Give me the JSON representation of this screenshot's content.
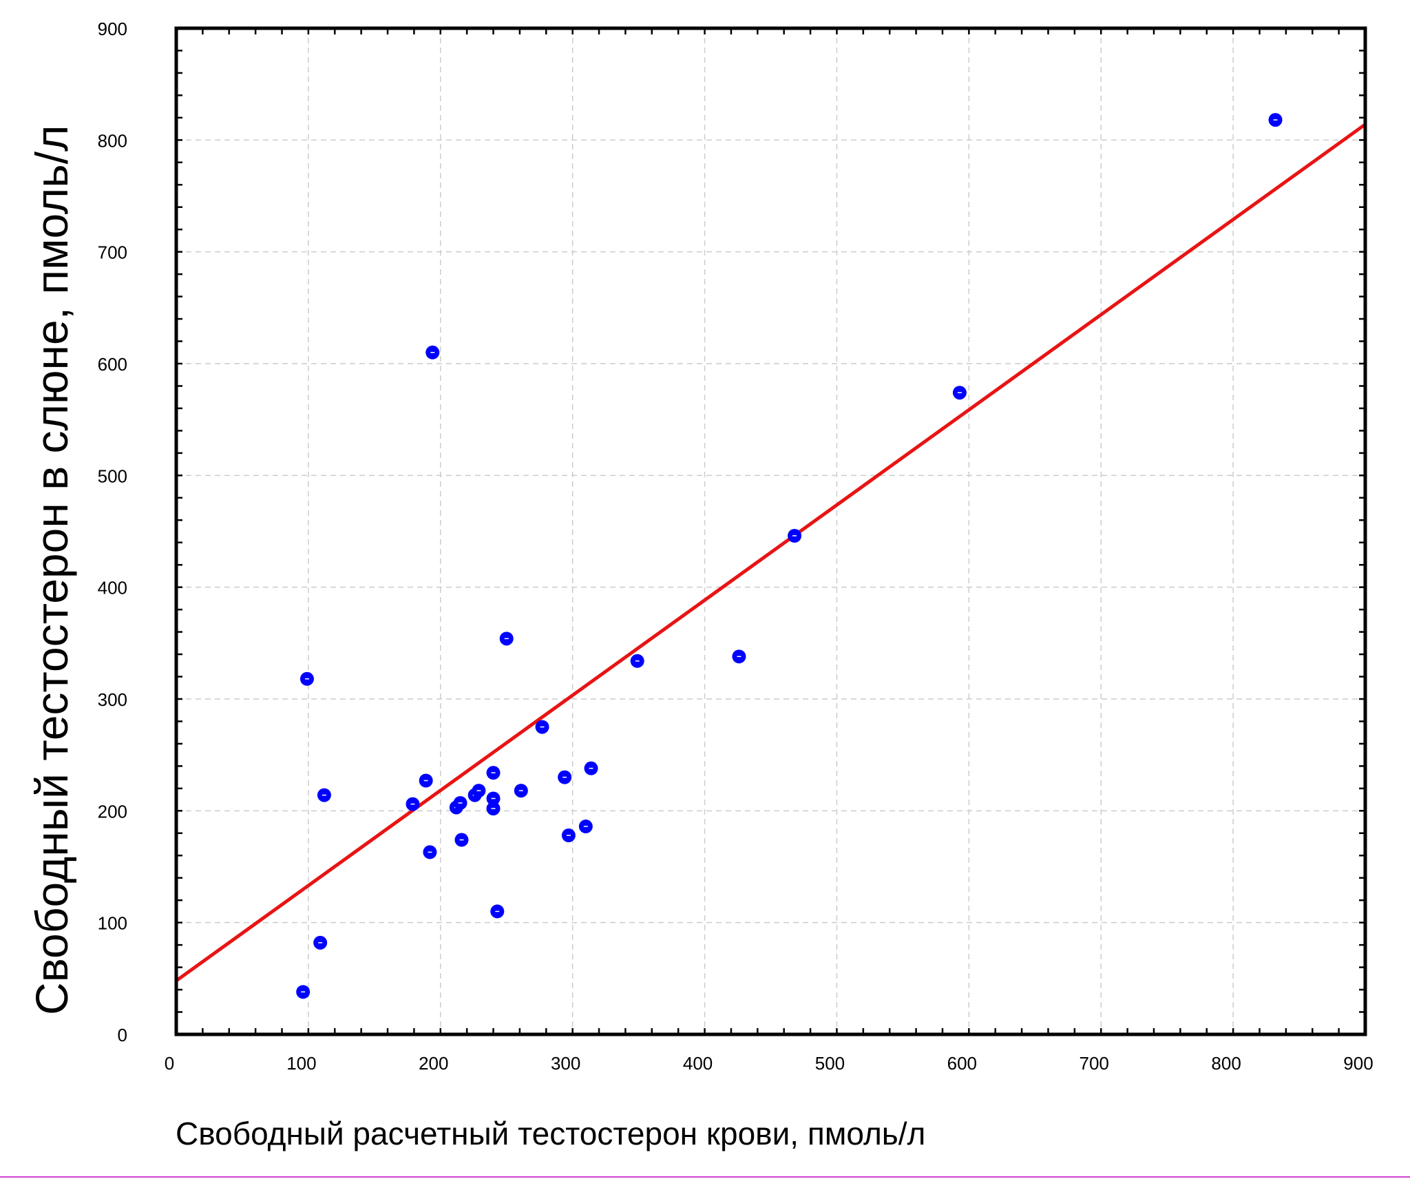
{
  "chart_data": {
    "type": "scatter",
    "title": "",
    "xlabel": "Свободный расчетный тестостерон крови, пмоль/л",
    "ylabel": "Свободный тестостерон в слюне, пмоль/л",
    "xlim": [
      0,
      900
    ],
    "ylim": [
      0,
      900
    ],
    "x_ticks": [
      0,
      100,
      200,
      300,
      400,
      500,
      600,
      700,
      800,
      900
    ],
    "y_ticks": [
      0,
      100,
      200,
      300,
      400,
      500,
      600,
      700,
      800,
      900
    ],
    "grid": true,
    "legend": "none",
    "points": [
      {
        "x": 96,
        "y": 38
      },
      {
        "x": 99,
        "y": 318
      },
      {
        "x": 109,
        "y": 82
      },
      {
        "x": 112,
        "y": 214
      },
      {
        "x": 179,
        "y": 206
      },
      {
        "x": 189,
        "y": 227
      },
      {
        "x": 192,
        "y": 163
      },
      {
        "x": 194,
        "y": 610
      },
      {
        "x": 212,
        "y": 203
      },
      {
        "x": 215,
        "y": 207
      },
      {
        "x": 216,
        "y": 174
      },
      {
        "x": 226,
        "y": 214
      },
      {
        "x": 229,
        "y": 218
      },
      {
        "x": 240,
        "y": 234
      },
      {
        "x": 240,
        "y": 211
      },
      {
        "x": 240,
        "y": 202
      },
      {
        "x": 243,
        "y": 110
      },
      {
        "x": 250,
        "y": 354
      },
      {
        "x": 261,
        "y": 218
      },
      {
        "x": 277,
        "y": 275
      },
      {
        "x": 294,
        "y": 230
      },
      {
        "x": 297,
        "y": 178
      },
      {
        "x": 310,
        "y": 186
      },
      {
        "x": 314,
        "y": 238
      },
      {
        "x": 349,
        "y": 334
      },
      {
        "x": 426,
        "y": 338
      },
      {
        "x": 468,
        "y": 446
      },
      {
        "x": 593,
        "y": 574
      },
      {
        "x": 832,
        "y": 818
      }
    ],
    "fit_line": {
      "x": [
        0,
        900
      ],
      "y": [
        48,
        814
      ]
    },
    "colors": {
      "points": "#0000ff",
      "fit_line": "#e81414",
      "grid": "#cccccc",
      "frame": "#000000"
    }
  }
}
